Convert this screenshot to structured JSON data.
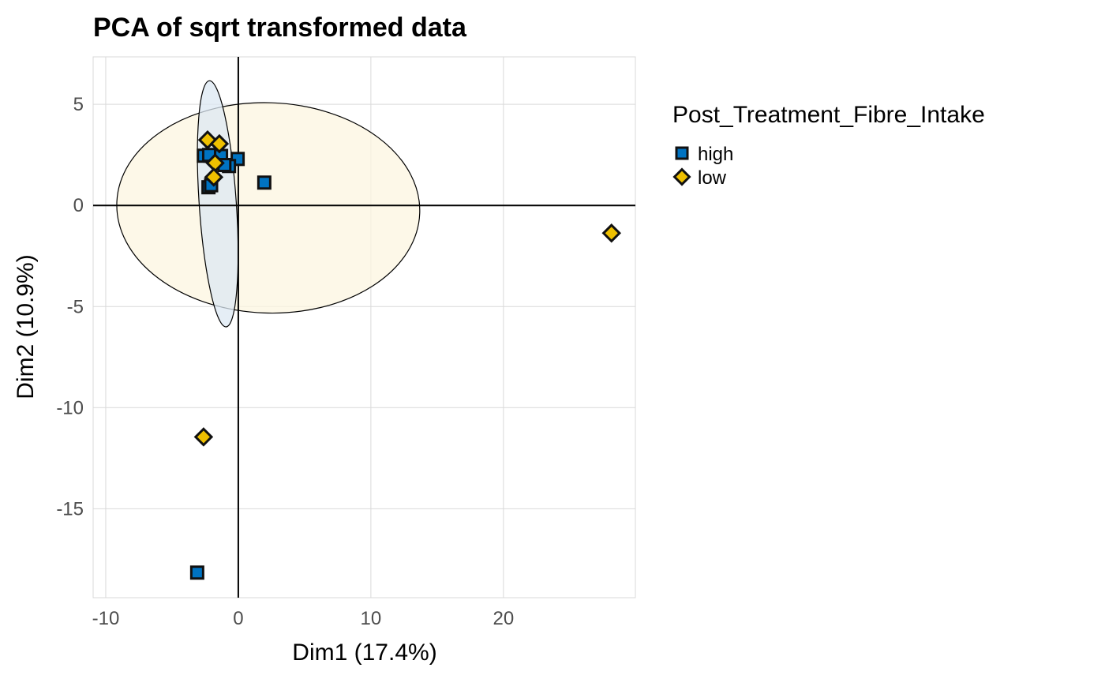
{
  "chart_data": {
    "type": "scatter",
    "title": "PCA of sqrt transformed data",
    "xlabel": "Dim1 (17.4%)",
    "ylabel": "Dim2 (10.9%)",
    "xlim": [
      -10.95,
      29.95
    ],
    "ylim": [
      -19.4,
      7.35
    ],
    "xticks": [
      -10,
      0,
      10,
      20
    ],
    "yticks": [
      5,
      0,
      -5,
      -10,
      -15
    ],
    "xtick_labels": [
      "-10",
      "0",
      "10",
      "20"
    ],
    "ytick_labels": [
      "5",
      "0",
      "-5",
      "-10",
      "-15"
    ],
    "grid": true,
    "legend": {
      "title": "Post_Treatment_Fibre_Intake",
      "placement": "right"
    },
    "series": [
      {
        "name": "high",
        "marker": "square",
        "color": "#0073C2",
        "points": [
          [
            -2.6,
            2.46
          ],
          [
            -2.1,
            2.46
          ],
          [
            -2.2,
            2.5
          ],
          [
            -1.3,
            2.45
          ],
          [
            -0.05,
            2.3
          ],
          [
            -0.7,
            1.95
          ],
          [
            -1.05,
            2.0
          ],
          [
            -2.25,
            0.9
          ],
          [
            -2.05,
            1.0
          ],
          [
            1.96,
            1.13
          ],
          [
            -3.1,
            -18.16
          ]
        ],
        "ellipse": {
          "cx": -1.55,
          "cy": 0.08,
          "rx": 1.4,
          "ry": 6.1,
          "fill": "#DCE8F3"
        }
      },
      {
        "name": "low",
        "marker": "diamond",
        "color": "#EFC000",
        "points": [
          [
            -2.32,
            3.24
          ],
          [
            -1.43,
            3.05
          ],
          [
            -1.75,
            2.1
          ],
          [
            -1.85,
            1.4
          ],
          [
            28.15,
            -1.37
          ],
          [
            -2.62,
            -11.45
          ]
        ],
        "ellipse": {
          "cx": 2.26,
          "cy": -0.12,
          "rx": 11.43,
          "ry": 5.2,
          "fill": "#FCF5E0"
        }
      }
    ]
  }
}
